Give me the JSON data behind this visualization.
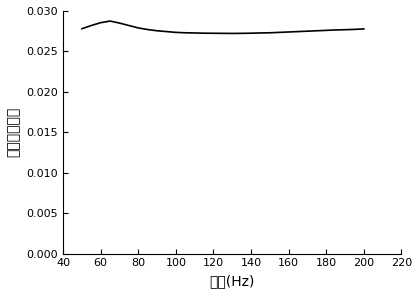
{
  "x": [
    50,
    55,
    60,
    65,
    70,
    75,
    80,
    85,
    90,
    95,
    100,
    105,
    110,
    115,
    120,
    125,
    130,
    135,
    140,
    145,
    150,
    155,
    160,
    165,
    170,
    175,
    180,
    185,
    190,
    195,
    200
  ],
  "y": [
    0.0278,
    0.0282,
    0.02855,
    0.02875,
    0.0285,
    0.0282,
    0.0279,
    0.0277,
    0.02755,
    0.02745,
    0.02735,
    0.0273,
    0.02728,
    0.02725,
    0.02724,
    0.02723,
    0.02722,
    0.02723,
    0.02725,
    0.02728,
    0.0273,
    0.02735,
    0.0274,
    0.02745,
    0.0275,
    0.02755,
    0.0276,
    0.02765,
    0.02768,
    0.02772,
    0.02778
  ],
  "xlim": [
    40,
    220
  ],
  "ylim": [
    0.0,
    0.03
  ],
  "xticks": [
    40,
    60,
    80,
    100,
    120,
    140,
    160,
    180,
    200,
    220
  ],
  "yticks": [
    0.0,
    0.005,
    0.01,
    0.015,
    0.02,
    0.025,
    0.03
  ],
  "xlabel": "频率(Hz)",
  "ylabel": "磁滩损耗系数",
  "line_color": "#000000",
  "line_width": 1.2,
  "background_color": "#ffffff"
}
